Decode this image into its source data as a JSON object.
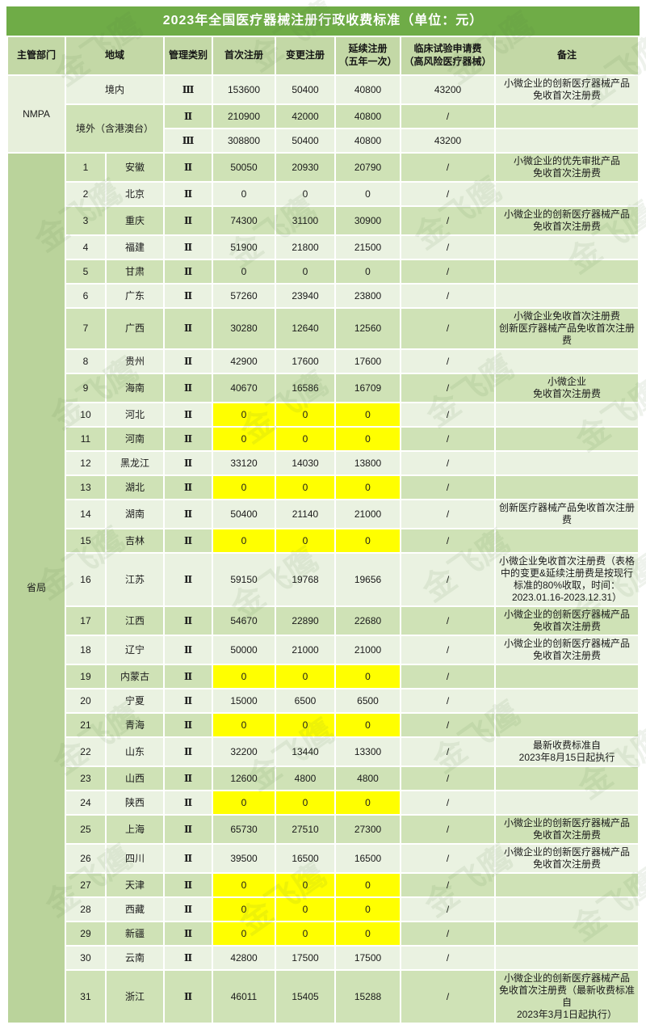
{
  "title": "2023年全国医疗器械注册行政收费标准（单位：元）",
  "watermark_text": "金飞鹰",
  "colors": {
    "title_bg": "#6fac47",
    "header_bg": "#c3d8a6",
    "row_light": "#eaf2e1",
    "row_medium": "#cfe2b6",
    "dept_provincial_bg": "#bad39b",
    "highlight_yellow": "#ffff00",
    "blue_text": "#3e7cbe"
  },
  "table": {
    "headers": [
      {
        "key": "dept",
        "label": "主管部门"
      },
      {
        "key": "region",
        "label": "地域"
      },
      {
        "key": "class",
        "label": "管理类别"
      },
      {
        "key": "first",
        "label": "首次注册"
      },
      {
        "key": "change",
        "label": "变更注册"
      },
      {
        "key": "renew",
        "label": "延续注册\n（五年一次）"
      },
      {
        "key": "clinical",
        "label": "临床试验申请费\n（高风险医疗器械）"
      },
      {
        "key": "remark",
        "label": "备注"
      }
    ],
    "nmpa": {
      "dept": "NMPA",
      "rows": [
        {
          "region": "境内",
          "class": "Ⅲ",
          "first": "153600",
          "change": "50400",
          "renew": "40800",
          "clinical": "43200",
          "remark": "小微企业的创新医疗器械产品\n免收首次注册费"
        },
        {
          "region": "境外（含港澳台）",
          "class": "Ⅱ",
          "first": "210900",
          "change": "42000",
          "renew": "40800",
          "clinical": "/",
          "remark": ""
        },
        {
          "class": "Ⅲ",
          "first": "308800",
          "change": "50400",
          "renew": "40800",
          "clinical": "43200",
          "remark": ""
        }
      ]
    },
    "provincial": {
      "dept": "省局",
      "rows": [
        {
          "no": "1",
          "region": "安徽",
          "class": "Ⅱ",
          "first": "50050",
          "change": "20930",
          "renew": "20790",
          "clinical": "/",
          "remark": "小微企业的优先审批产品\n免收首次注册费",
          "highlight": false,
          "blue": false
        },
        {
          "no": "2",
          "region": "北京",
          "class": "Ⅱ",
          "first": "0",
          "change": "0",
          "renew": "0",
          "clinical": "/",
          "remark": "",
          "highlight": false,
          "blue": false
        },
        {
          "no": "3",
          "region": "重庆",
          "class": "Ⅱ",
          "first": "74300",
          "change": "31100",
          "renew": "30900",
          "clinical": "/",
          "remark": "小微企业的创新医疗器械产品\n免收首次注册费",
          "highlight": false,
          "blue": false
        },
        {
          "no": "4",
          "region": "福建",
          "class": "Ⅱ",
          "first": "51900",
          "change": "21800",
          "renew": "21500",
          "clinical": "/",
          "remark": "",
          "highlight": false,
          "blue": false
        },
        {
          "no": "5",
          "region": "甘肃",
          "class": "Ⅱ",
          "first": "0",
          "change": "0",
          "renew": "0",
          "clinical": "/",
          "remark": "",
          "highlight": false,
          "blue": false
        },
        {
          "no": "6",
          "region": "广东",
          "class": "Ⅱ",
          "first": "57260",
          "change": "23940",
          "renew": "23800",
          "clinical": "/",
          "remark": "",
          "highlight": false,
          "blue": false
        },
        {
          "no": "7",
          "region": "广西",
          "class": "Ⅱ",
          "first": "30280",
          "change": "12640",
          "renew": "12560",
          "clinical": "/",
          "remark": "小微企业免收首次注册费\n创新医疗器械产品免收首次注册费",
          "highlight": false,
          "blue": false
        },
        {
          "no": "8",
          "region": "贵州",
          "class": "Ⅱ",
          "first": "42900",
          "change": "17600",
          "renew": "17600",
          "clinical": "/",
          "remark": "",
          "highlight": false,
          "blue": false
        },
        {
          "no": "9",
          "region": "海南",
          "class": "Ⅱ",
          "first": "40670",
          "change": "16586",
          "renew": "16709",
          "clinical": "/",
          "remark": "小微企业\n免收首次注册费",
          "highlight": false,
          "blue": false
        },
        {
          "no": "10",
          "region": "河北",
          "class": "Ⅱ",
          "first": "0",
          "change": "0",
          "renew": "0",
          "clinical": "/",
          "remark": "",
          "highlight": true,
          "blue": false
        },
        {
          "no": "11",
          "region": "河南",
          "class": "Ⅱ",
          "first": "0",
          "change": "0",
          "renew": "0",
          "clinical": "/",
          "remark": "",
          "highlight": true,
          "blue": false
        },
        {
          "no": "12",
          "region": "黑龙江",
          "class": "Ⅱ",
          "first": "33120",
          "change": "14030",
          "renew": "13800",
          "clinical": "/",
          "remark": "",
          "highlight": false,
          "blue": false
        },
        {
          "no": "13",
          "region": "湖北",
          "class": "Ⅱ",
          "first": "0",
          "change": "0",
          "renew": "0",
          "clinical": "/",
          "remark": "",
          "highlight": true,
          "blue": false
        },
        {
          "no": "14",
          "region": "湖南",
          "class": "Ⅱ",
          "first": "50400",
          "change": "21140",
          "renew": "21000",
          "clinical": "/",
          "remark": "创新医疗器械产品免收首次注册费",
          "highlight": false,
          "blue": false
        },
        {
          "no": "15",
          "region": "吉林",
          "class": "Ⅱ",
          "first": "0",
          "change": "0",
          "renew": "0",
          "clinical": "/",
          "remark": "",
          "highlight": true,
          "blue": false
        },
        {
          "no": "16",
          "region": "江苏",
          "class": "Ⅱ",
          "first": "59150",
          "change": "19768",
          "renew": "19656",
          "clinical": "/",
          "remark": "小微企业免收首次注册费（表格中的变更&延续注册费是按现行标准的80%收取，时间：2023.01.16-2023.12.31）",
          "highlight": false,
          "blue": false
        },
        {
          "no": "17",
          "region": "江西",
          "class": "Ⅱ",
          "first": "54670",
          "change": "22890",
          "renew": "22680",
          "clinical": "/",
          "remark": "小微企业的创新医疗器械产品\n免收首次注册费",
          "highlight": false,
          "blue": false
        },
        {
          "no": "18",
          "region": "辽宁",
          "class": "Ⅱ",
          "first": "50000",
          "change": "21000",
          "renew": "21000",
          "clinical": "/",
          "remark": "小微企业的创新医疗器械产品\n免收首次注册费",
          "highlight": false,
          "blue": false
        },
        {
          "no": "19",
          "region": "内蒙古",
          "class": "Ⅱ",
          "first": "0",
          "change": "0",
          "renew": "0",
          "clinical": "/",
          "remark": "",
          "highlight": true,
          "blue": false
        },
        {
          "no": "20",
          "region": "宁夏",
          "class": "Ⅱ",
          "first": "15000",
          "change": "6500",
          "renew": "6500",
          "clinical": "/",
          "remark": "",
          "highlight": false,
          "blue": false
        },
        {
          "no": "21",
          "region": "青海",
          "class": "Ⅱ",
          "first": "0",
          "change": "0",
          "renew": "0",
          "clinical": "/",
          "remark": "",
          "highlight": true,
          "blue": false
        },
        {
          "no": "22",
          "region": "山东",
          "class": "Ⅱ",
          "first": "32200",
          "change": "13440",
          "renew": "13300",
          "clinical": "/",
          "remark": "最新收费标准自\n2023年8月15日起执行",
          "highlight": false,
          "blue": false
        },
        {
          "no": "23",
          "region": "山西",
          "class": "Ⅱ",
          "first": "12600",
          "change": "4800",
          "renew": "4800",
          "clinical": "/",
          "remark": "",
          "highlight": false,
          "blue": true
        },
        {
          "no": "24",
          "region": "陕西",
          "class": "Ⅱ",
          "first": "0",
          "change": "0",
          "renew": "0",
          "clinical": "/",
          "remark": "",
          "highlight": true,
          "blue": false
        },
        {
          "no": "25",
          "region": "上海",
          "class": "Ⅱ",
          "first": "65730",
          "change": "27510",
          "renew": "27300",
          "clinical": "/",
          "remark": "小微企业的创新医疗器械产品\n免收首次注册费",
          "highlight": false,
          "blue": false
        },
        {
          "no": "26",
          "region": "四川",
          "class": "Ⅱ",
          "first": "39500",
          "change": "16500",
          "renew": "16500",
          "clinical": "/",
          "remark": "小微企业的创新医疗器械产品\n免收首次注册费",
          "highlight": false,
          "blue": false
        },
        {
          "no": "27",
          "region": "天津",
          "class": "Ⅱ",
          "first": "0",
          "change": "0",
          "renew": "0",
          "clinical": "/",
          "remark": "",
          "highlight": true,
          "blue": false
        },
        {
          "no": "28",
          "region": "西藏",
          "class": "Ⅱ",
          "first": "0",
          "change": "0",
          "renew": "0",
          "clinical": "/",
          "remark": "",
          "highlight": true,
          "blue": false
        },
        {
          "no": "29",
          "region": "新疆",
          "class": "Ⅱ",
          "first": "0",
          "change": "0",
          "renew": "0",
          "clinical": "/",
          "remark": "",
          "highlight": true,
          "blue": false
        },
        {
          "no": "30",
          "region": "云南",
          "class": "Ⅱ",
          "first": "42800",
          "change": "17500",
          "renew": "17500",
          "clinical": "/",
          "remark": "",
          "highlight": false,
          "blue": false
        },
        {
          "no": "31",
          "region": "浙江",
          "class": "Ⅱ",
          "first": "46011",
          "change": "15405",
          "renew": "15288",
          "clinical": "/",
          "remark": "小微企业的创新医疗器械产品\n免收首次注册费（最新收费标准自\n2023年3月1日起执行）",
          "highlight": false,
          "blue": false
        }
      ]
    }
  }
}
